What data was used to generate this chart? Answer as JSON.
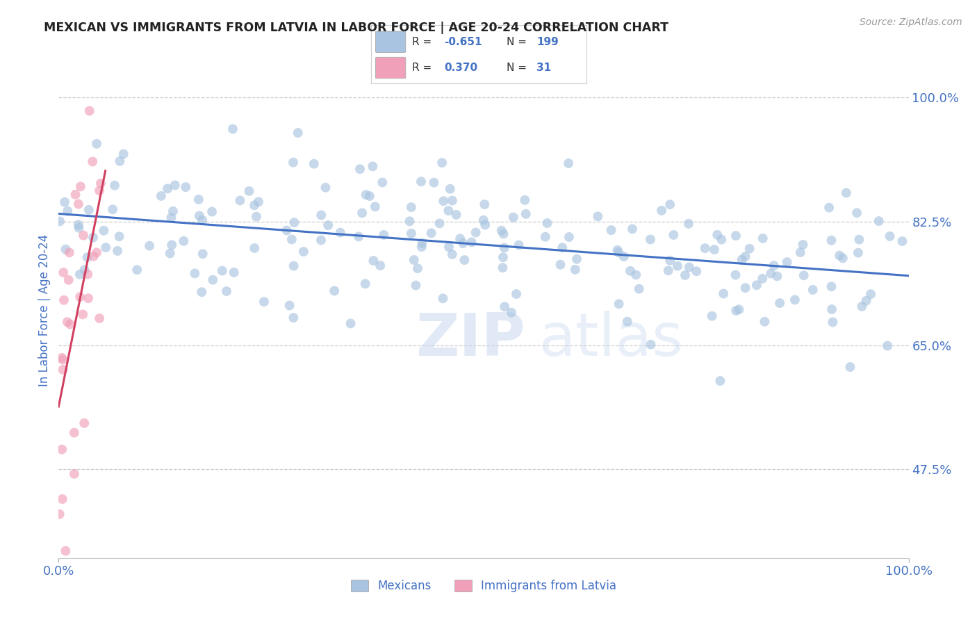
{
  "title": "MEXICAN VS IMMIGRANTS FROM LATVIA IN LABOR FORCE | AGE 20-24 CORRELATION CHART",
  "source": "Source: ZipAtlas.com",
  "ylabel": "In Labor Force | Age 20-24",
  "blue_R": -0.651,
  "blue_N": 199,
  "pink_R": 0.37,
  "pink_N": 31,
  "blue_color": "#a8c4e0",
  "pink_color": "#f0a0b8",
  "blue_line_color": "#4472c4",
  "pink_line_color": "#d04060",
  "legend_label_blue": "Mexicans",
  "legend_label_pink": "Immigrants from Latvia",
  "xlim": [
    0.0,
    1.0
  ],
  "ylim": [
    0.35,
    1.05
  ],
  "yticks": [
    0.475,
    0.65,
    0.825,
    1.0
  ],
  "ytick_labels": [
    "47.5%",
    "65.0%",
    "82.5%",
    "100.0%"
  ],
  "xticks": [
    0.0,
    1.0
  ],
  "xtick_labels": [
    "0.0%",
    "100.0%"
  ],
  "grid_color": "#cccccc",
  "background_color": "#ffffff",
  "title_color": "#222222",
  "source_color": "#999999",
  "tick_color": "#4472c4",
  "watermark_zip": "ZIP",
  "watermark_atlas": "atlas",
  "seed": 7
}
